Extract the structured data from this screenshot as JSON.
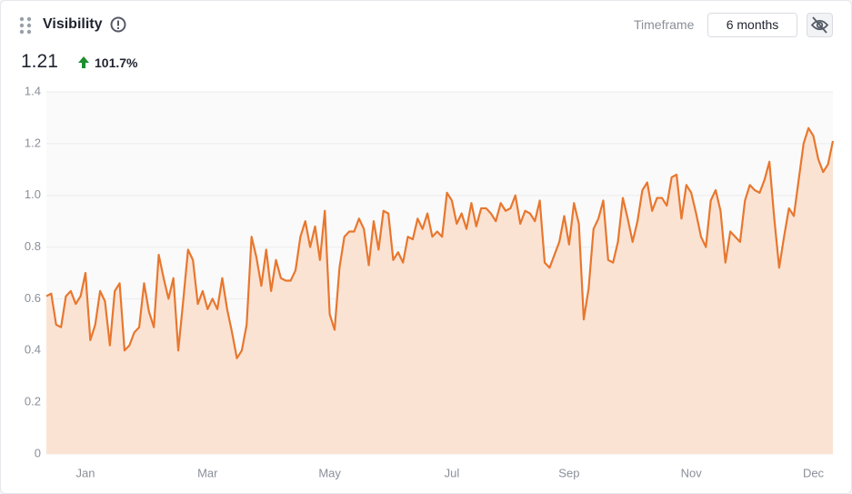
{
  "header": {
    "title": "Visibility",
    "current_value": "1.21",
    "change": "101.7%",
    "timeframe_label": "Timeframe",
    "timeframe_value": "6 months"
  },
  "chart_data": {
    "type": "area",
    "color": "#e8772e",
    "fill": "#fbe3d4",
    "grid": true,
    "ylim": [
      0,
      1.4
    ],
    "yticks": [
      0,
      0.2,
      0.4,
      0.6,
      0.8,
      {
        "value": 1,
        "label": "1.0"
      },
      1.2,
      1.4
    ],
    "categories": [
      null,
      null,
      null,
      null,
      null,
      null,
      null,
      null,
      "Jan",
      null,
      null,
      null,
      null,
      null,
      null,
      null,
      null,
      null,
      null,
      null,
      null,
      null,
      null,
      null,
      null,
      null,
      null,
      null,
      null,
      null,
      null,
      null,
      null,
      "Mar",
      null,
      null,
      null,
      null,
      null,
      null,
      null,
      null,
      null,
      null,
      null,
      null,
      null,
      null,
      null,
      null,
      null,
      null,
      null,
      null,
      null,
      null,
      null,
      null,
      "May",
      null,
      null,
      null,
      null,
      null,
      null,
      null,
      null,
      null,
      null,
      null,
      null,
      null,
      null,
      null,
      null,
      null,
      null,
      null,
      null,
      null,
      null,
      null,
      null,
      "Jul",
      null,
      null,
      null,
      null,
      null,
      null,
      null,
      null,
      null,
      null,
      null,
      null,
      null,
      null,
      null,
      null,
      null,
      null,
      null,
      null,
      null,
      null,
      null,
      "Sep",
      null,
      null,
      null,
      null,
      null,
      null,
      null,
      null,
      null,
      null,
      null,
      null,
      null,
      null,
      null,
      null,
      null,
      null,
      null,
      null,
      null,
      null,
      null,
      null,
      "Nov",
      null,
      null,
      null,
      null,
      null,
      null,
      null,
      null,
      null,
      null,
      null,
      null,
      null,
      null,
      null,
      null,
      null,
      null,
      null,
      null,
      null,
      null,
      null,
      null,
      "Dec",
      null,
      null,
      null,
      null
    ],
    "values": [
      0.61,
      0.62,
      0.5,
      0.49,
      0.61,
      0.63,
      0.58,
      0.61,
      0.7,
      0.44,
      0.5,
      0.63,
      0.59,
      0.42,
      0.63,
      0.66,
      0.4,
      0.42,
      0.47,
      0.49,
      0.66,
      0.55,
      0.49,
      0.77,
      0.68,
      0.6,
      0.68,
      0.4,
      0.59,
      0.79,
      0.75,
      0.58,
      0.63,
      0.56,
      0.6,
      0.56,
      0.68,
      0.56,
      0.47,
      0.37,
      0.4,
      0.5,
      0.84,
      0.76,
      0.65,
      0.79,
      0.63,
      0.75,
      0.68,
      0.67,
      0.67,
      0.71,
      0.84,
      0.9,
      0.8,
      0.88,
      0.75,
      0.94,
      0.54,
      0.48,
      0.72,
      0.84,
      0.86,
      0.86,
      0.91,
      0.87,
      0.73,
      0.9,
      0.79,
      0.94,
      0.93,
      0.75,
      0.78,
      0.74,
      0.84,
      0.83,
      0.91,
      0.87,
      0.93,
      0.84,
      0.86,
      0.84,
      1.01,
      0.98,
      0.89,
      0.93,
      0.87,
      0.97,
      0.88,
      0.95,
      0.95,
      0.93,
      0.9,
      0.97,
      0.94,
      0.95,
      1.0,
      0.89,
      0.94,
      0.93,
      0.9,
      0.98,
      0.74,
      0.72,
      0.77,
      0.82,
      0.92,
      0.81,
      0.97,
      0.89,
      0.52,
      0.64,
      0.87,
      0.91,
      0.98,
      0.75,
      0.74,
      0.82,
      0.99,
      0.91,
      0.82,
      0.9,
      1.02,
      1.05,
      0.94,
      0.99,
      0.99,
      0.96,
      1.07,
      1.08,
      0.91,
      1.04,
      1.01,
      0.93,
      0.84,
      0.8,
      0.98,
      1.02,
      0.94,
      0.74,
      0.86,
      0.84,
      0.82,
      0.98,
      1.04,
      1.02,
      1.01,
      1.06,
      1.13,
      0.91,
      0.72,
      0.84,
      0.95,
      0.92,
      1.06,
      1.2,
      1.26,
      1.23,
      1.14,
      1.09,
      1.12,
      1.21
    ]
  }
}
